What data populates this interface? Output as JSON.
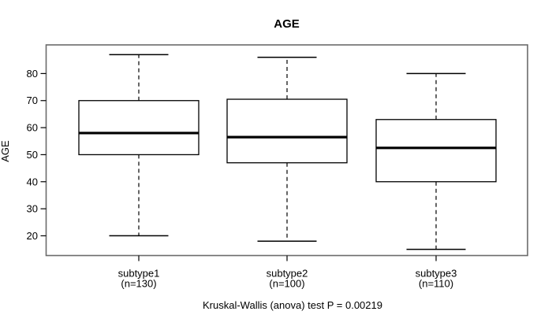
{
  "title": "AGE",
  "footer": "Kruskal-Wallis (anova) test P = 0.00219",
  "chart_data": {
    "type": "boxplot",
    "title": "AGE",
    "xlabel": "",
    "ylabel": "AGE",
    "annotation": "Kruskal-Wallis (anova) test P = 0.00219",
    "yticks": [
      20,
      30,
      40,
      50,
      60,
      70,
      80
    ],
    "ylim": [
      12.7,
      90.6
    ],
    "grid": false,
    "legend": "none",
    "categories": [
      "subtype1",
      "subtype2",
      "subtype3"
    ],
    "groups": [
      {
        "label": "subtype1",
        "n_label": "(n=130)",
        "n": 130,
        "whisker_low": 20,
        "q1": 50,
        "median": 58,
        "q3": 70,
        "whisker_high": 87
      },
      {
        "label": "subtype2",
        "n_label": "(n=100)",
        "n": 100,
        "whisker_low": 18,
        "q1": 47,
        "median": 56.5,
        "q3": 70.5,
        "whisker_high": 86
      },
      {
        "label": "subtype3",
        "n_label": "(n=110)",
        "n": 110,
        "whisker_low": 15,
        "q1": 40,
        "median": 52.5,
        "q3": 63,
        "whisker_high": 80
      }
    ],
    "colors": {
      "line": "#000000",
      "frame": "#6b6b6b",
      "text": "#000000",
      "box_fill": "#ffffff",
      "background": "#ffffff"
    }
  }
}
